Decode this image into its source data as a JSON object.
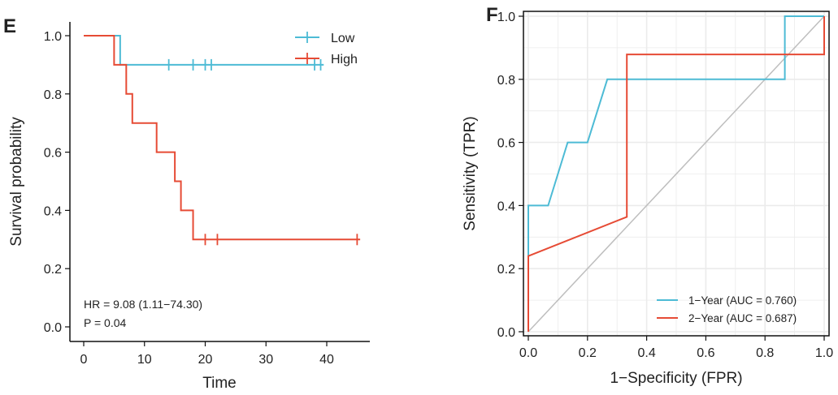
{
  "colors": {
    "low": "#4DBBD5",
    "high": "#E64B35",
    "diag": "#BEBEBE",
    "grid": "#EBEBEB"
  },
  "chart_data": [
    {
      "panel_label": "E",
      "type": "line",
      "subtype": "kaplan-meier step",
      "xlabel": "Time",
      "ylabel": "Survival probability",
      "xlim": [
        0,
        45
      ],
      "ylim": [
        0,
        1
      ],
      "xticks": [
        "0",
        "10",
        "20",
        "30",
        "40"
      ],
      "yticks": [
        "0.0",
        "0.2",
        "0.4",
        "0.6",
        "0.8",
        "1.0"
      ],
      "legend": "top-right",
      "annotations": [
        "HR = 9.08 (1.11−74.30)",
        "P = 0.04"
      ],
      "series": [
        {
          "name": "Low",
          "color": "#4DBBD5",
          "steps": [
            [
              0,
              1.0
            ],
            [
              6,
              0.9
            ],
            [
              39.5,
              0.9
            ]
          ],
          "censored": [
            14,
            18,
            20,
            21,
            38,
            39
          ]
        },
        {
          "name": "High",
          "color": "#E64B35",
          "steps": [
            [
              0,
              1.0
            ],
            [
              5,
              0.9
            ],
            [
              7,
              0.8
            ],
            [
              8,
              0.7
            ],
            [
              12,
              0.6
            ],
            [
              15,
              0.5
            ],
            [
              16,
              0.4
            ],
            [
              18,
              0.3
            ],
            [
              45.5,
              0.3
            ]
          ],
          "censored": [
            20,
            22,
            45
          ]
        }
      ]
    },
    {
      "panel_label": "F",
      "type": "line",
      "subtype": "roc",
      "xlabel": "1−Specificity (FPR)",
      "ylabel": "Sensitivity (TPR)",
      "xlim": [
        0,
        1
      ],
      "ylim": [
        0,
        1
      ],
      "xticks": [
        "0.0",
        "0.2",
        "0.4",
        "0.6",
        "0.8",
        "1.0"
      ],
      "yticks": [
        "0.0",
        "0.2",
        "0.4",
        "0.6",
        "0.8",
        "1.0"
      ],
      "grid": true,
      "legend": "bottom-right",
      "series": [
        {
          "name": "1−Year (AUC = 0.760)",
          "color": "#4DBBD5",
          "points": [
            [
              0,
              0
            ],
            [
              0,
              0.4
            ],
            [
              0.067,
              0.4
            ],
            [
              0.133,
              0.6
            ],
            [
              0.2,
              0.6
            ],
            [
              0.267,
              0.8
            ],
            [
              0.867,
              0.8
            ],
            [
              0.867,
              1.0
            ],
            [
              1,
              1.0
            ]
          ]
        },
        {
          "name": "2−Year (AUC = 0.687)",
          "color": "#E64B35",
          "points": [
            [
              0,
              0
            ],
            [
              0,
              0.24
            ],
            [
              0.333,
              0.364
            ],
            [
              0.333,
              0.879
            ],
            [
              1,
              0.879
            ],
            [
              1,
              1.0
            ]
          ]
        }
      ],
      "reference_line": [
        [
          0,
          0
        ],
        [
          1,
          1
        ]
      ]
    }
  ]
}
